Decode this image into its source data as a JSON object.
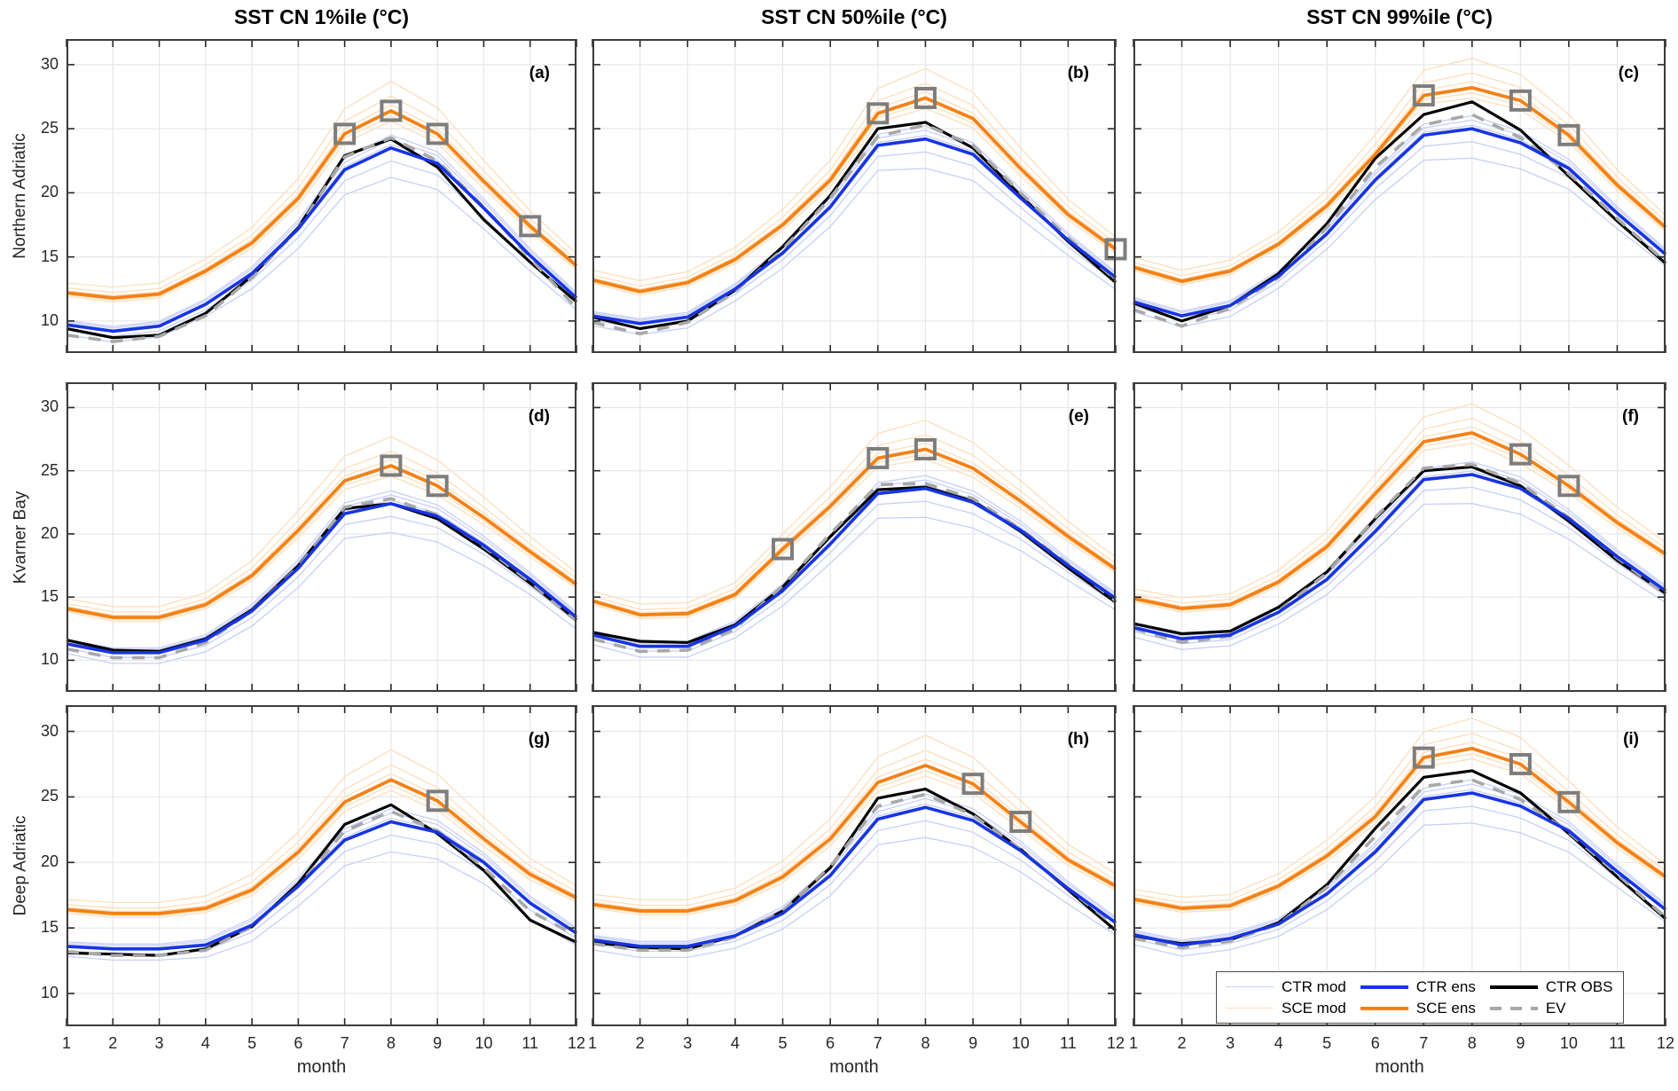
{
  "figure": {
    "col_titles": [
      "SST CN 1%ile (°C)",
      "SST CN 50%ile (°C)",
      "SST CN 99%ile (°C)"
    ],
    "row_labels": [
      "Northern Adriatic",
      "Kvarner Bay",
      "Deep Adriatic"
    ],
    "xlabel": "month",
    "colors": {
      "ctr_ens": "#1735e3",
      "sce_ens": "#f58114",
      "ctr_obs": "#000000",
      "ev": "#a8a8a8",
      "ctr_mod": "#c7cff7",
      "sce_mod": "#fcdfbc",
      "square_marker": "#7d7d7d",
      "grid": "#e7e7e7",
      "frame": "#3c3c3c"
    },
    "legend": {
      "entries": [
        {
          "id": "ctr-mod",
          "label": "CTR mod"
        },
        {
          "id": "sce-mod",
          "label": "SCE mod"
        },
        {
          "id": "ctr-ens",
          "label": "CTR ens"
        },
        {
          "id": "sce-ens",
          "label": "SCE ens"
        },
        {
          "id": "ctr-obs",
          "label": "CTR OBS"
        },
        {
          "id": "ev",
          "label": "EV"
        }
      ]
    }
  },
  "chart_data": {
    "type": "line",
    "months": [
      1,
      2,
      3,
      4,
      5,
      6,
      7,
      8,
      9,
      10,
      11,
      12
    ],
    "xlabel": "month",
    "ylim": [
      7.5,
      32
    ],
    "yticks": [
      10,
      15,
      20,
      25,
      30
    ],
    "grid": true,
    "legend_position": "inside-panel-i-bottom",
    "member_config": {
      "ctr_offsets": [
        -1.7,
        -0.75,
        0.2,
        0.5,
        0.75
      ],
      "sce_offsets": [
        -0.6,
        -0.3,
        0.35,
        0.85,
        1.7
      ],
      "seasonal_weight": [
        0.45,
        0.5,
        0.5,
        0.55,
        0.7,
        0.9,
        1.15,
        1.35,
        1.2,
        0.95,
        0.7,
        0.55
      ]
    },
    "panels": [
      {
        "label": "(a)",
        "region": "Northern Adriatic",
        "percentile": "1%ile",
        "series": {
          "SCE ens": [
            12.2,
            11.8,
            12.1,
            13.9,
            16.1,
            19.6,
            24.6,
            26.4,
            24.6,
            20.9,
            17.4,
            14.3
          ],
          "CTR ens": [
            9.7,
            9.2,
            9.6,
            11.3,
            13.7,
            17.2,
            21.8,
            23.5,
            22.3,
            18.8,
            15.1,
            11.8
          ],
          "CTR OBS": [
            9.4,
            8.7,
            8.9,
            10.6,
            13.5,
            17.3,
            22.9,
            24.2,
            22.0,
            17.9,
            14.6,
            11.5
          ],
          "EV": [
            8.9,
            8.4,
            8.8,
            10.4,
            13.4,
            17.2,
            22.8,
            24.3,
            22.5,
            18.9,
            14.9,
            11.0
          ]
        },
        "sce_square_months": [
          7,
          8,
          9,
          11
        ]
      },
      {
        "label": "(b)",
        "region": "Northern Adriatic",
        "percentile": "50%ile",
        "series": {
          "SCE ens": [
            13.2,
            12.3,
            13.0,
            14.8,
            17.5,
            21.0,
            26.2,
            27.4,
            25.8,
            21.9,
            18.3,
            15.6
          ],
          "CTR ens": [
            10.4,
            9.8,
            10.3,
            12.5,
            15.3,
            18.9,
            23.7,
            24.2,
            23.0,
            19.6,
            16.3,
            13.4
          ],
          "CTR OBS": [
            10.3,
            9.4,
            10.0,
            12.4,
            15.8,
            19.8,
            25.0,
            25.5,
            23.5,
            19.8,
            16.2,
            13.0
          ],
          "EV": [
            9.9,
            9.0,
            9.9,
            12.3,
            15.6,
            19.6,
            24.4,
            25.3,
            23.7,
            20.0,
            16.5,
            13.2
          ]
        },
        "sce_square_months": [
          7,
          8,
          12
        ]
      },
      {
        "label": "(c)",
        "region": "Northern Adriatic",
        "percentile": "99%ile",
        "series": {
          "SCE ens": [
            14.2,
            13.1,
            13.9,
            16.0,
            19.0,
            23.0,
            27.6,
            28.2,
            27.2,
            24.5,
            20.6,
            17.3
          ],
          "CTR ens": [
            11.5,
            10.4,
            11.2,
            13.5,
            16.8,
            21.0,
            24.5,
            25.0,
            23.9,
            21.9,
            18.4,
            15.2
          ],
          "CTR OBS": [
            11.4,
            10.0,
            11.2,
            13.7,
            17.6,
            22.7,
            26.1,
            27.1,
            24.9,
            21.3,
            17.8,
            14.5
          ],
          "EV": [
            10.9,
            9.6,
            11.0,
            13.4,
            17.3,
            22.0,
            25.3,
            26.1,
            24.3,
            21.5,
            18.0,
            14.6
          ]
        },
        "sce_square_months": [
          7,
          9,
          10
        ]
      },
      {
        "label": "(d)",
        "region": "Kvarner Bay",
        "percentile": "1%ile",
        "series": {
          "SCE ens": [
            14.1,
            13.4,
            13.4,
            14.4,
            16.7,
            20.3,
            24.2,
            25.4,
            23.8,
            21.3,
            18.6,
            16.0
          ],
          "CTR ens": [
            11.3,
            10.6,
            10.6,
            11.6,
            13.9,
            17.3,
            21.6,
            22.4,
            21.4,
            19.1,
            16.4,
            13.4
          ],
          "CTR OBS": [
            11.6,
            10.8,
            10.7,
            11.7,
            14.0,
            17.5,
            22.0,
            22.4,
            21.2,
            18.8,
            16.1,
            13.2
          ],
          "EV": [
            10.9,
            10.2,
            10.2,
            11.4,
            13.9,
            17.4,
            22.1,
            22.8,
            21.5,
            19.0,
            16.2,
            13.1
          ]
        },
        "sce_square_months": [
          8,
          9
        ]
      },
      {
        "label": "(e)",
        "region": "Kvarner Bay",
        "percentile": "50%ile",
        "series": {
          "SCE ens": [
            14.7,
            13.6,
            13.7,
            15.2,
            18.8,
            22.2,
            26.0,
            26.7,
            25.2,
            22.6,
            19.8,
            17.2
          ],
          "CTR ens": [
            12.0,
            11.1,
            11.1,
            12.7,
            15.5,
            19.2,
            23.2,
            23.6,
            22.5,
            20.3,
            17.5,
            14.9
          ],
          "CTR OBS": [
            12.2,
            11.5,
            11.4,
            12.8,
            15.8,
            19.8,
            23.5,
            23.7,
            22.6,
            20.2,
            17.3,
            14.6
          ],
          "EV": [
            11.7,
            10.7,
            10.8,
            12.5,
            15.9,
            20.0,
            23.9,
            24.0,
            22.8,
            20.4,
            17.6,
            14.7
          ]
        },
        "sce_square_months": [
          5,
          7,
          8
        ]
      },
      {
        "label": "(f)",
        "region": "Kvarner Bay",
        "percentile": "99%ile",
        "series": {
          "SCE ens": [
            14.9,
            14.1,
            14.4,
            16.2,
            19.0,
            23.2,
            27.3,
            28.0,
            26.3,
            23.8,
            20.9,
            18.4
          ],
          "CTR ens": [
            12.6,
            11.7,
            12.0,
            13.8,
            16.4,
            20.2,
            24.3,
            24.7,
            23.6,
            21.2,
            18.2,
            15.5
          ],
          "CTR OBS": [
            12.9,
            12.1,
            12.3,
            14.2,
            17.0,
            21.2,
            25.0,
            25.3,
            23.8,
            21.0,
            17.9,
            15.3
          ],
          "EV": [
            12.5,
            11.4,
            11.9,
            13.9,
            16.9,
            21.3,
            25.2,
            25.5,
            24.0,
            21.3,
            18.1,
            15.2
          ]
        },
        "sce_square_months": [
          9,
          10
        ]
      },
      {
        "label": "(g)",
        "region": "Deep Adriatic",
        "percentile": "1%ile",
        "series": {
          "SCE ens": [
            16.4,
            16.1,
            16.1,
            16.5,
            17.9,
            20.8,
            24.6,
            26.3,
            24.7,
            21.8,
            19.1,
            17.3
          ],
          "CTR ens": [
            13.6,
            13.4,
            13.4,
            13.7,
            15.2,
            18.2,
            21.7,
            23.1,
            22.3,
            20.0,
            16.9,
            14.6
          ],
          "CTR OBS": [
            13.1,
            13.0,
            12.9,
            13.4,
            15.1,
            18.4,
            22.9,
            24.4,
            22.2,
            19.4,
            15.6,
            13.9
          ],
          "EV": [
            13.2,
            12.9,
            12.9,
            13.3,
            15.1,
            18.2,
            22.4,
            23.9,
            22.4,
            19.6,
            16.3,
            14.4
          ]
        },
        "sce_square_months": [
          9
        ]
      },
      {
        "label": "(h)",
        "region": "Deep Adriatic",
        "percentile": "50%ile",
        "series": {
          "SCE ens": [
            16.8,
            16.3,
            16.3,
            17.1,
            18.9,
            21.8,
            26.1,
            27.4,
            26.0,
            23.1,
            20.2,
            18.2
          ],
          "CTR ens": [
            14.1,
            13.6,
            13.6,
            14.4,
            16.1,
            19.0,
            23.3,
            24.2,
            23.2,
            20.9,
            18.0,
            15.4
          ],
          "CTR OBS": [
            13.9,
            13.5,
            13.4,
            14.4,
            16.3,
            19.6,
            24.9,
            25.6,
            23.7,
            21.0,
            17.9,
            14.8
          ],
          "EV": [
            13.8,
            13.3,
            13.3,
            14.3,
            16.3,
            19.7,
            24.3,
            25.2,
            23.6,
            21.0,
            18.0,
            15.1
          ]
        },
        "sce_square_months": [
          9,
          10
        ]
      },
      {
        "label": "(i)",
        "region": "Deep Adriatic",
        "percentile": "99%ile",
        "series": {
          "SCE ens": [
            17.2,
            16.5,
            16.7,
            18.2,
            20.5,
            23.5,
            28.0,
            28.7,
            27.5,
            24.6,
            21.5,
            18.9
          ],
          "CTR ens": [
            14.5,
            13.7,
            14.2,
            15.3,
            17.6,
            20.8,
            24.8,
            25.3,
            24.3,
            22.4,
            19.3,
            16.4
          ],
          "CTR OBS": [
            14.4,
            13.8,
            14.1,
            15.4,
            18.3,
            22.6,
            26.5,
            27.0,
            25.3,
            22.2,
            18.9,
            15.7
          ],
          "EV": [
            14.2,
            13.5,
            14.0,
            15.3,
            18.1,
            22.0,
            25.8,
            26.3,
            24.8,
            22.3,
            19.1,
            15.8
          ]
        },
        "sce_square_months": [
          7,
          9,
          10
        ]
      }
    ]
  }
}
